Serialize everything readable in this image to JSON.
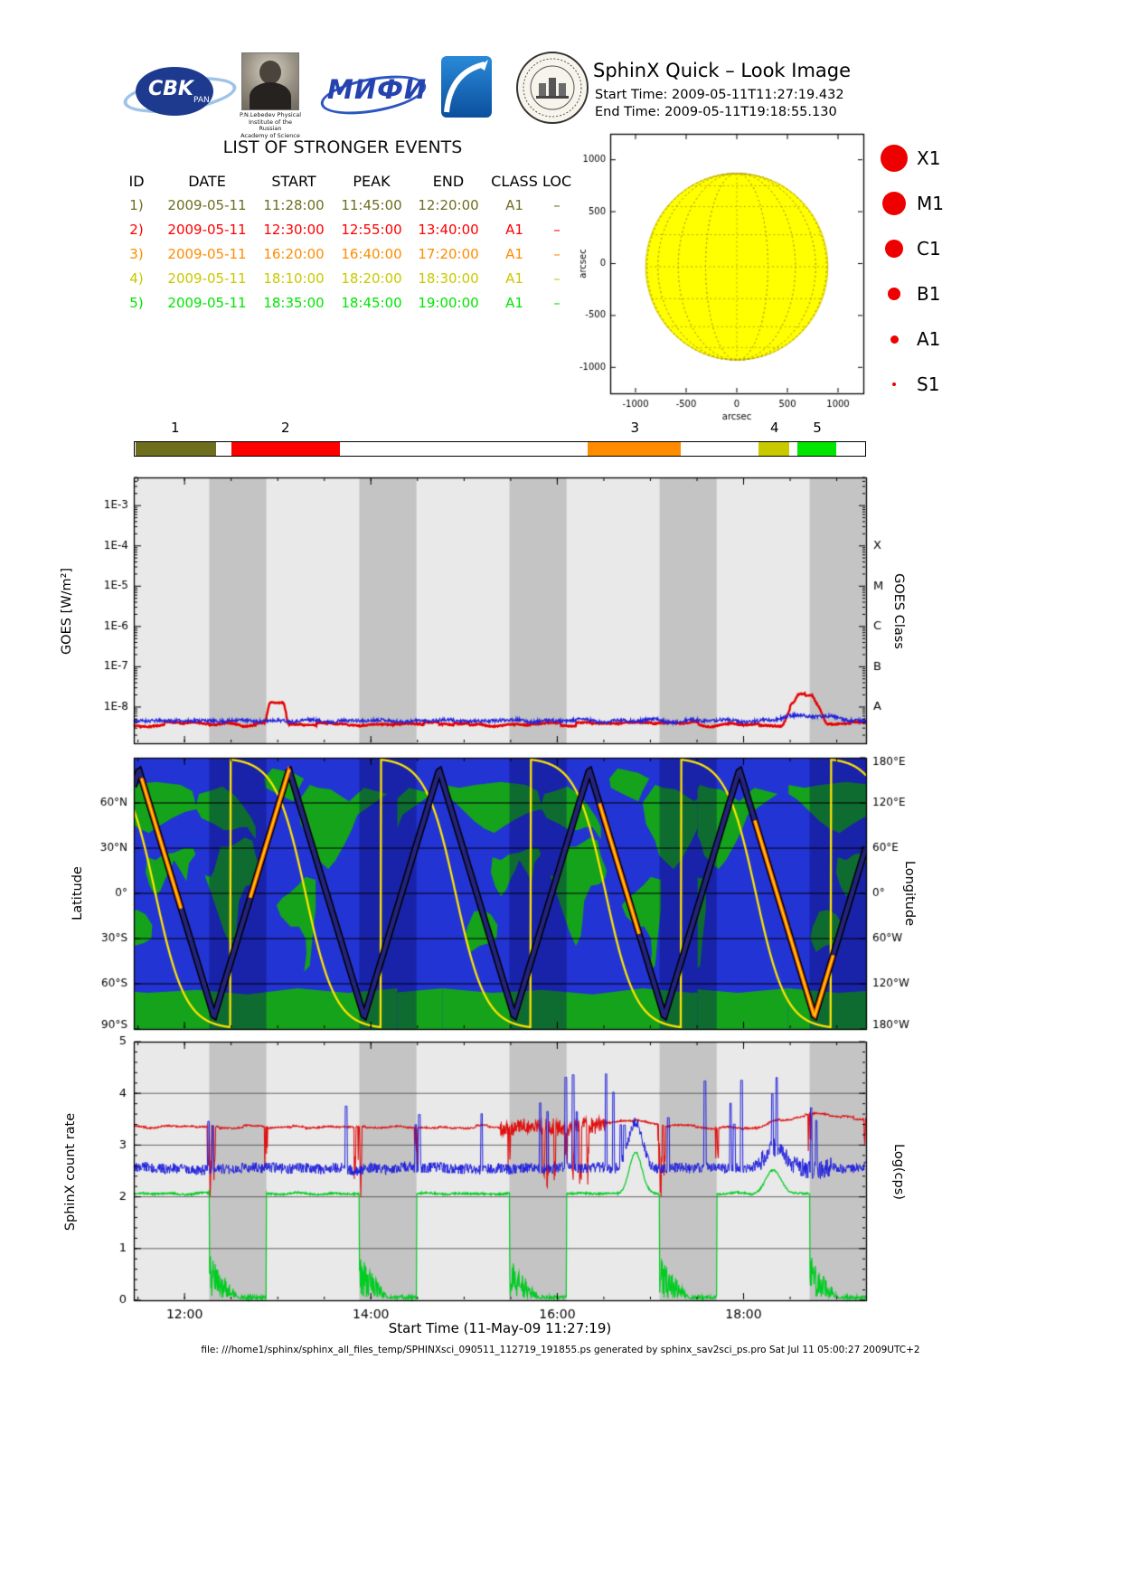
{
  "header": {
    "title": "SphinX Quick – Look Image",
    "start_time": "Start Time: 2009-05-11T11:27:19.432",
    "end_time": "End Time: 2009-05-11T19:18:55.130"
  },
  "logos": {
    "cbk": {
      "label": "CBK",
      "sub": "PAN"
    },
    "lebedev": {
      "caption_lines": [
        "P.N.Lebedev Physical",
        "Institute of the Russian",
        "Academy of Science"
      ]
    },
    "mephi": {
      "label": "МИФИ"
    }
  },
  "events": {
    "title": "LIST OF STRONGER EVENTS",
    "columns": [
      "ID",
      "DATE",
      "START",
      "PEAK",
      "END",
      "CLASS",
      "LOC"
    ],
    "rows": [
      {
        "id": "1)",
        "date": "2009-05-11",
        "start": "11:28:00",
        "peak": "11:45:00",
        "end": "12:20:00",
        "class": "A1",
        "loc": "–",
        "color": "#6e6e1f"
      },
      {
        "id": "2)",
        "date": "2009-05-11",
        "start": "12:30:00",
        "peak": "12:55:00",
        "end": "13:40:00",
        "class": "A1",
        "loc": "–",
        "color": "#ff0000"
      },
      {
        "id": "3)",
        "date": "2009-05-11",
        "start": "16:20:00",
        "peak": "16:40:00",
        "end": "17:20:00",
        "class": "A1",
        "loc": "–",
        "color": "#ff8c00"
      },
      {
        "id": "4)",
        "date": "2009-05-11",
        "start": "18:10:00",
        "peak": "18:20:00",
        "end": "18:30:00",
        "class": "A1",
        "loc": "–",
        "color": "#c9c900"
      },
      {
        "id": "5)",
        "date": "2009-05-11",
        "start": "18:35:00",
        "peak": "18:45:00",
        "end": "19:00:00",
        "class": "A1",
        "loc": "–",
        "color": "#00e600"
      }
    ]
  },
  "class_legend": {
    "color": "#ee0000",
    "items": [
      {
        "label": "X1",
        "size": 30
      },
      {
        "label": "M1",
        "size": 26
      },
      {
        "label": "C1",
        "size": 20
      },
      {
        "label": "B1",
        "size": 14
      },
      {
        "label": "A1",
        "size": 9
      },
      {
        "label": "S1",
        "size": 4
      }
    ]
  },
  "time_range": {
    "start_hms": "11:27:19",
    "end_hms": "19:18:55"
  },
  "time_axis": {
    "labels": [
      "12:00",
      "14:00",
      "16:00",
      "18:00"
    ],
    "major_fracs": [
      0.0693,
      0.3238,
      0.5783,
      0.8327
    ],
    "minor_fracs": [
      0.0057,
      0.0693,
      0.1329,
      0.1966,
      0.2602,
      0.3238,
      0.3874,
      0.4511,
      0.5147,
      0.5783,
      0.6419,
      0.7055,
      0.7692,
      0.8328,
      0.8964,
      0.96
    ]
  },
  "eclipse": {
    "first_start": 0.103,
    "width": 0.078,
    "period": 0.205
  },
  "axis_labels": {
    "goes_left": "GOES [W/m²]",
    "goes_right": "GOES Class",
    "map_left": "Latitude",
    "map_right": "Longitude",
    "counts_left": "SphinX count rate",
    "counts_right": "Log(cps)",
    "xlabel": "Start Time (11-May-09 11:27:19)"
  },
  "footer": {
    "text": "file: ///home1/sphinx/sphinx_all_files_temp/SPHINXsci_090511_112719_191855.ps generated by sphinx_sav2sci_ps.pro Sat Jul 11 05:00:27 2009UTC+2"
  },
  "chart_data": [
    {
      "id": "sun",
      "type": "scatter",
      "title": "Solar disk quick-look",
      "xlabel": "arcsec",
      "ylabel": "arcsec",
      "xlim": [
        -1250,
        1250
      ],
      "ylim": [
        -1250,
        1250
      ],
      "xticks": [
        -1000,
        -500,
        0,
        500,
        1000
      ],
      "yticks": [
        -1000,
        -500,
        0,
        500,
        1000
      ],
      "disk": {
        "center": [
          0,
          -30
        ],
        "radius": 900,
        "fill": "#ffff00",
        "edge": "#d8c800",
        "grid": "#b8a816",
        "grid_step_deg": 20
      }
    },
    {
      "id": "goes",
      "type": "line",
      "bg": "#e9e9e9",
      "band": "#c4c4c4",
      "ylog": {
        "top": -2.3,
        "bottom": -8.9,
        "decades": [
          -3,
          -4,
          -5,
          -6,
          -7,
          -8
        ],
        "labels": [
          "1E-3",
          "1E-4",
          "1E-5",
          "1E-6",
          "1E-7",
          "1E-8"
        ]
      },
      "right_letters": {
        "letters": [
          "X",
          "M",
          "C",
          "B",
          "A"
        ],
        "decades": [
          -4,
          -5,
          -6,
          -7,
          -8
        ]
      },
      "series": [
        {
          "name": "goes-long-flux",
          "color": "#e60000",
          "width": 2.4,
          "base": -8.42,
          "lf_amp": 0.04,
          "step_amp": 0.05,
          "noise": 0.015,
          "seed": 7,
          "bumps": [
            {
              "t0": 0.178,
              "t1": 0.212,
              "amp": 0.52
            },
            {
              "t0": 0.884,
              "t1": 0.948,
              "amp": 0.5
            },
            {
              "t0": 0.9,
              "t1": 0.934,
              "amp": 0.22
            }
          ]
        },
        {
          "name": "goes-short-flux",
          "color": "#2222dd",
          "width": 1.3,
          "base": -8.34,
          "lf_amp": 0.05,
          "step_amp": 0,
          "noise": 0.04,
          "seed": 11,
          "bumps": [
            {
              "t0": 0.87,
              "t1": 0.975,
              "amp": 0.12
            }
          ]
        }
      ]
    },
    {
      "id": "map",
      "type": "ground-track-map",
      "lat_ticks": {
        "labels": [
          "60°N",
          "30°N",
          "0°",
          "30°S",
          "60°S",
          "90°S"
        ],
        "degrees": [
          60,
          30,
          0,
          -30,
          -60,
          -90
        ]
      },
      "lon_ticks": {
        "labels": [
          "180°E",
          "120°E",
          "60°E",
          "0°",
          "60°W",
          "120°W",
          "180°W"
        ],
        "degrees": [
          180,
          120,
          60,
          0,
          -60,
          -120,
          -180
        ]
      },
      "orbit": {
        "period": 0.205,
        "lat_max": 82,
        "peak_t": 0.007,
        "lon_wrap_t": 0.132,
        "lon_steep": 5,
        "tile_period": 0.41,
        "tile_offset": -0.05,
        "drift_deg_per_tile": -54
      },
      "colors": {
        "ocean": "#2334d4",
        "land": "#15a31c",
        "eclipse": "rgba(5,5,90,0.35)",
        "track_outer": "#000000",
        "track_inner": "#23237c",
        "hot_outer": "#ff5a00",
        "hot_inner": "#ffd800",
        "lon_line": "#ffe400"
      },
      "hot_halfwidth": 0.027,
      "continents": [
        [
          [
            -168,
            66
          ],
          [
            -140,
            70
          ],
          [
            -122,
            61
          ],
          [
            -100,
            69
          ],
          [
            -85,
            70
          ],
          [
            -75,
            72
          ],
          [
            -60,
            60
          ],
          [
            -64,
            46
          ],
          [
            -75,
            35
          ],
          [
            -80,
            25
          ],
          [
            -97,
            16
          ],
          [
            -106,
            22
          ],
          [
            -117,
            33
          ],
          [
            -125,
            42
          ],
          [
            -132,
            52
          ],
          [
            -152,
            60
          ]
        ],
        [
          [
            -55,
            61
          ],
          [
            -40,
            65
          ],
          [
            -22,
            70
          ],
          [
            -20,
            76
          ],
          [
            -30,
            83
          ],
          [
            -55,
            80
          ],
          [
            -68,
            76
          ],
          [
            -60,
            68
          ]
        ],
        [
          [
            -82,
            9
          ],
          [
            -70,
            11
          ],
          [
            -60,
            5
          ],
          [
            -50,
            0
          ],
          [
            -42,
            -3
          ],
          [
            -35,
            -8
          ],
          [
            -40,
            -15
          ],
          [
            -52,
            -22
          ],
          [
            -62,
            -22
          ],
          [
            -70,
            -30
          ],
          [
            -71,
            -40
          ],
          [
            -68,
            -52
          ],
          [
            -75,
            -48
          ],
          [
            -78,
            -30
          ],
          [
            -82,
            -10
          ]
        ],
        [
          [
            -17,
            15
          ],
          [
            -10,
            25
          ],
          [
            -6,
            35
          ],
          [
            3,
            37
          ],
          [
            11,
            34
          ],
          [
            20,
            31
          ],
          [
            32,
            31
          ],
          [
            40,
            15
          ],
          [
            44,
            11
          ],
          [
            51,
            12
          ],
          [
            42,
            -2
          ],
          [
            36,
            -12
          ],
          [
            28,
            -25
          ],
          [
            20,
            -35
          ],
          [
            14,
            -28
          ],
          [
            12,
            -18
          ],
          [
            10,
            -5
          ],
          [
            2,
            5
          ],
          [
            -8,
            6
          ],
          [
            -15,
            10
          ]
        ],
        [
          [
            -10,
            36
          ],
          [
            0,
            44
          ],
          [
            8,
            44
          ],
          [
            18,
            42
          ],
          [
            28,
            42
          ],
          [
            40,
            46
          ],
          [
            55,
            50
          ],
          [
            62,
            57
          ],
          [
            58,
            66
          ],
          [
            45,
            68
          ],
          [
            30,
            71
          ],
          [
            15,
            65
          ],
          [
            5,
            58
          ],
          [
            -5,
            50
          ],
          [
            -10,
            44
          ]
        ],
        [
          [
            60,
            56
          ],
          [
            75,
            54
          ],
          [
            90,
            50
          ],
          [
            105,
            45
          ],
          [
            118,
            40
          ],
          [
            130,
            43
          ],
          [
            142,
            48
          ],
          [
            155,
            55
          ],
          [
            168,
            62
          ],
          [
            179,
            66
          ],
          [
            179,
            72
          ],
          [
            160,
            70
          ],
          [
            140,
            72
          ],
          [
            110,
            74
          ],
          [
            80,
            72
          ],
          [
            66,
            68
          ]
        ],
        [
          [
            62,
            26
          ],
          [
            70,
            20
          ],
          [
            73,
            8
          ],
          [
            80,
            15
          ],
          [
            88,
            22
          ],
          [
            92,
            16
          ],
          [
            98,
            10
          ],
          [
            104,
            2
          ],
          [
            110,
            -2
          ],
          [
            117,
            5
          ],
          [
            122,
            14
          ],
          [
            120,
            24
          ],
          [
            110,
            22
          ],
          [
            100,
            26
          ],
          [
            88,
            27
          ],
          [
            75,
            30
          ],
          [
            65,
            30
          ]
        ],
        [
          [
            114,
            -21
          ],
          [
            122,
            -14
          ],
          [
            132,
            -11
          ],
          [
            142,
            -12
          ],
          [
            150,
            -22
          ],
          [
            153,
            -30
          ],
          [
            146,
            -39
          ],
          [
            136,
            -35
          ],
          [
            124,
            -33
          ],
          [
            115,
            -30
          ]
        ],
        [
          [
            -180,
            -63
          ],
          [
            -120,
            -66
          ],
          [
            -60,
            -63
          ],
          [
            0,
            -67
          ],
          [
            60,
            -64
          ],
          [
            120,
            -66
          ],
          [
            180,
            -63
          ],
          [
            180,
            -90
          ],
          [
            -180,
            -90
          ]
        ]
      ]
    },
    {
      "id": "counts",
      "type": "line",
      "ylim": [
        0,
        5
      ],
      "yticks": [
        0,
        1,
        2,
        3,
        4,
        5
      ],
      "bg": "#e9e9e9",
      "band": "#c4c4c4",
      "red": {
        "color": "#e01010",
        "base": 3.35,
        "seed": 41,
        "bumps": [
          {
            "t": 0.675,
            "amp": 0.12,
            "w": 0.05
          },
          {
            "t": 0.93,
            "amp": 0.1,
            "w": 0.05
          }
        ],
        "dips": [
          0.105,
          0.11,
          0.302,
          0.31,
          0.56,
          0.565,
          0.575,
          0.6,
          0.61,
          0.62,
          0.72,
          0.725
        ],
        "ramp_start": 0.84,
        "ramp_amp": 0.14
      },
      "blue": {
        "color": "#2020dd",
        "base": 2.55,
        "seed": 51,
        "bumps": [
          {
            "t": 0.685,
            "amp": 0.9,
            "w": 0.014
          },
          {
            "t": 0.877,
            "amp": 0.4,
            "w": 0.02
          }
        ],
        "spikes": [
          0.102,
          0.108,
          0.29,
          0.385,
          0.39,
          0.475,
          0.555,
          0.565,
          0.59,
          0.6,
          0.605,
          0.645,
          0.655,
          0.665,
          0.67,
          0.73,
          0.78,
          0.815,
          0.82,
          0.83,
          0.872,
          0.878,
          0.925,
          0.932
        ]
      },
      "green": {
        "color": "#00cc22",
        "base": 2.06,
        "seed": 61,
        "bumps": [
          {
            "t": 0.685,
            "amp": 0.8,
            "w": 0.012
          },
          {
            "t": 0.873,
            "amp": 0.45,
            "w": 0.015
          }
        ]
      }
    }
  ]
}
